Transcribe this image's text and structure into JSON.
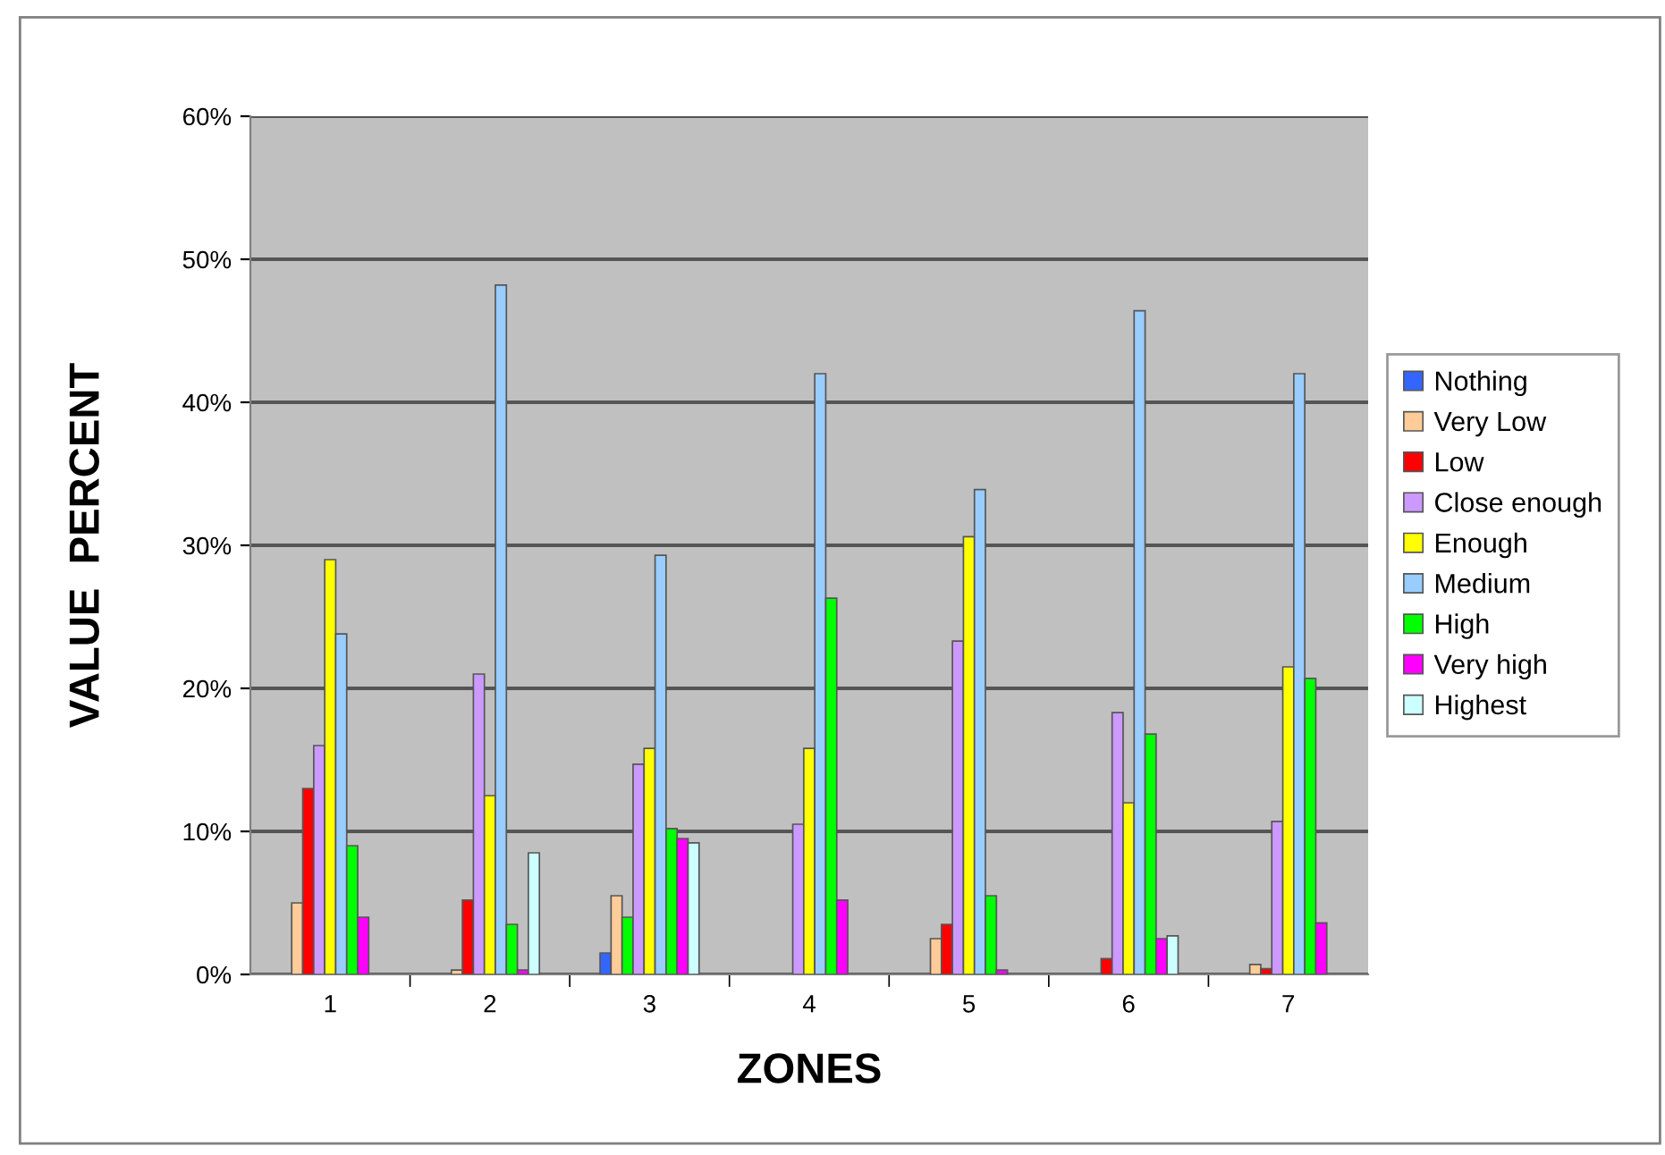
{
  "chart_data": {
    "type": "bar",
    "xlabel": "ZONES",
    "ylabel": "VALUE  PERCENT",
    "categories": [
      "1",
      "2",
      "3",
      "4",
      "5",
      "6",
      "7"
    ],
    "series": [
      {
        "name": "Nothing",
        "color": "#3366ff",
        "values": [
          null,
          null,
          1.5,
          null,
          null,
          null,
          null
        ]
      },
      {
        "name": "Very Low",
        "color": "#ffcc99",
        "values": [
          5,
          0.3,
          5.5,
          null,
          2.5,
          null,
          0.7
        ]
      },
      {
        "name": "Low",
        "color": "#ff0000",
        "colors": [
          "#ff0000",
          "#ff0000",
          "#00ff00",
          "#ff0000",
          "#ff0000",
          "#ff0000",
          "#ff0000"
        ],
        "values": [
          13,
          5.2,
          4,
          null,
          3.5,
          1.1,
          0.4
        ]
      },
      {
        "name": "Close enough",
        "color": "#cc99ff",
        "values": [
          16,
          21,
          14.7,
          10.5,
          23.3,
          18.3,
          10.7
        ]
      },
      {
        "name": "Enough",
        "color": "#ffff00",
        "values": [
          29,
          12.5,
          15.8,
          15.8,
          30.6,
          12,
          21.5
        ]
      },
      {
        "name": "Medium",
        "color": "#99ccff",
        "values": [
          23.8,
          48.2,
          29.3,
          42,
          33.9,
          46.4,
          42
        ]
      },
      {
        "name": "High",
        "color": "#00ff00",
        "values": [
          9,
          3.5,
          10.2,
          26.3,
          5.5,
          16.8,
          20.7
        ]
      },
      {
        "name": "Very high",
        "color": "#ff00ff",
        "values": [
          4,
          0.3,
          9.5,
          5.2,
          0.3,
          2.5,
          3.6
        ]
      },
      {
        "name": "Highest",
        "color": "#ccffff",
        "values": [
          null,
          8.5,
          9.2,
          null,
          null,
          2.7,
          null
        ]
      }
    ],
    "ylim": [
      0,
      60
    ],
    "yticks": [
      {
        "value": 0,
        "label": "0%"
      },
      {
        "value": 10,
        "label": "10%"
      },
      {
        "value": 20,
        "label": "20%"
      },
      {
        "value": 30,
        "label": "30%"
      },
      {
        "value": 40,
        "label": "40%"
      },
      {
        "value": 50,
        "label": "50%"
      },
      {
        "value": 60,
        "label": "60%"
      }
    ],
    "grid": "y",
    "legend": "right"
  }
}
